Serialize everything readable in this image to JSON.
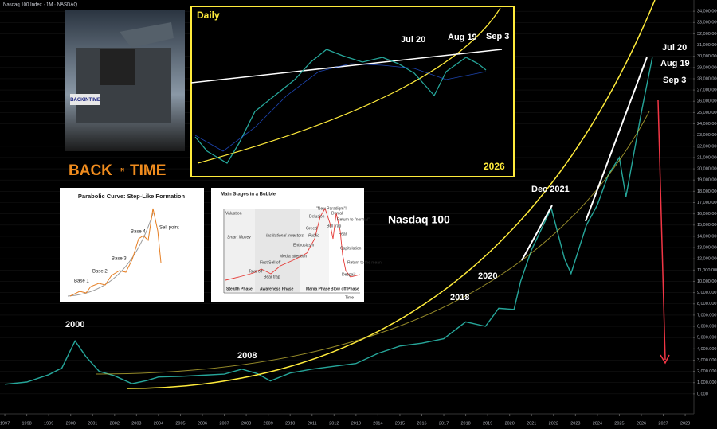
{
  "chart_data": {
    "type": "line",
    "title": "Nasdaq 100 Index · 1M · NASDAQ",
    "color": "#26a69a",
    "x": [
      1997,
      1998,
      1999,
      1999.6,
      2000.2,
      2000.7,
      2001.3,
      2002,
      2002.8,
      2003.5,
      2004,
      2005,
      2006,
      2007,
      2007.8,
      2008.5,
      2009.1,
      2010,
      2011,
      2012,
      2013,
      2014,
      2015,
      2016,
      2017,
      2018,
      2018.9,
      2019.5,
      2020.2,
      2020.5,
      2021,
      2021.9,
      2022.5,
      2022.8,
      2023.5,
      2024,
      2024.5,
      2025,
      2025.3,
      2026,
      2026.5
    ],
    "values": [
      850,
      1050,
      1700,
      2300,
      4700,
      3300,
      2000,
      1600,
      900,
      1200,
      1500,
      1550,
      1650,
      1750,
      2200,
      1800,
      1150,
      1850,
      2200,
      2450,
      2700,
      3600,
      4250,
      4500,
      4900,
      6400,
      6000,
      7600,
      7500,
      10000,
      12800,
      16500,
      12000,
      10700,
      15000,
      16800,
      19500,
      21000,
      17500,
      25000,
      29900
    ],
    "xlim": [
      1996.78,
      2028.36
    ],
    "xticks": [
      1997,
      1998,
      1999,
      2000,
      2001,
      2002,
      2003,
      2004,
      2005,
      2006,
      2007,
      2008,
      2009,
      2010,
      2011,
      2012,
      2013,
      2014,
      2015,
      2016,
      2017,
      2018,
      2019,
      2020,
      2021,
      2022,
      2023,
      2024,
      2025,
      2026,
      2027,
      2028
    ],
    "ylim": [
      -1000,
      35000
    ],
    "yticks": [
      {
        "value": 0,
        "label": "0.000"
      },
      {
        "value": 1000,
        "label": "1,000.000"
      },
      {
        "value": 2000,
        "label": "2,000.000"
      },
      {
        "value": 3000,
        "label": "3,000.000"
      },
      {
        "value": 4000,
        "label": "4,000.000"
      },
      {
        "value": 5000,
        "label": "5,000.000"
      },
      {
        "value": 6000,
        "label": "6,000.000"
      },
      {
        "value": 7000,
        "label": "7,000.000"
      },
      {
        "value": 8000,
        "label": "8,000.000"
      },
      {
        "value": 9000,
        "label": "9,000.000"
      },
      {
        "value": 10000,
        "label": "10,000.000"
      },
      {
        "value": 11000,
        "label": "11,000.000"
      },
      {
        "value": 12000,
        "label": "12,000.000"
      },
      {
        "value": 13000,
        "label": "13,000.000"
      },
      {
        "value": 14000,
        "label": "14,000.000"
      },
      {
        "value": 15000,
        "label": "15,000.000"
      },
      {
        "value": 16000,
        "label": "16,000.000"
      },
      {
        "value": 17000,
        "label": "17,000.000"
      },
      {
        "value": 18000,
        "label": "18,000.000"
      },
      {
        "value": 19000,
        "label": "19,000.000"
      },
      {
        "value": 20000,
        "label": "20,000.000"
      },
      {
        "value": 21000,
        "label": "21,000.000"
      },
      {
        "value": 22000,
        "label": "22,000.000"
      },
      {
        "value": 23000,
        "label": "23,000.000"
      },
      {
        "value": 24000,
        "label": "24,000.000"
      },
      {
        "value": 25000,
        "label": "25,000.000"
      },
      {
        "value": 26000,
        "label": "26,000.000"
      },
      {
        "value": 27000,
        "label": "27,000.000"
      },
      {
        "value": 28000,
        "label": "28,000.000"
      },
      {
        "value": 29000,
        "label": "29,000.000"
      },
      {
        "value": 30000,
        "label": "30,000.000"
      },
      {
        "value": 31000,
        "label": "31,000.000"
      },
      {
        "value": 32000,
        "label": "32,000.000"
      },
      {
        "value": 33000,
        "label": "33,000.000"
      },
      {
        "value": 34000,
        "label": "34,000.000"
      }
    ],
    "annotations": [
      "2000",
      "2008",
      "2018",
      "2020",
      "Dec 2021",
      "Nasdaq 100",
      "Jul 20",
      "Aug 19",
      "Sep 3"
    ]
  },
  "daily_inset": {
    "title": "Daily",
    "year": "2026",
    "labels": [
      "Jul 20",
      "Aug 19",
      "Sep 3"
    ]
  },
  "movie_inset": {
    "plate": "BACKINTIME",
    "logo_left": "BACK",
    "logo_mid": "IN",
    "logo_right": "TIME"
  },
  "parabolic_inset": {
    "title": "Parabolic Curve: Step-Like Formation",
    "labels": [
      "Base 1",
      "Base 2",
      "Base 3",
      "Base 4",
      "Sell point"
    ]
  },
  "bubble_inset": {
    "title": "Main Stages in a Bubble",
    "y_label": "Valuation",
    "x_label": "Time",
    "groups": [
      "Smart Money",
      "Institutional Investors",
      "Public"
    ],
    "phases": [
      "Stealth Phase",
      "Awareness Phase",
      "Mania Phase",
      "Blow off Phase"
    ],
    "labels": [
      "Take off",
      "First Sell off",
      "Bear trap",
      "Media attention",
      "Enthusiasm",
      "Greed",
      "Delusion",
      "\"New Paradigm\"!!",
      "Denial",
      "Return to \"normal\"",
      "Bull trap",
      "Fear",
      "Capitulation",
      "Despair",
      "Return to the mean"
    ]
  }
}
